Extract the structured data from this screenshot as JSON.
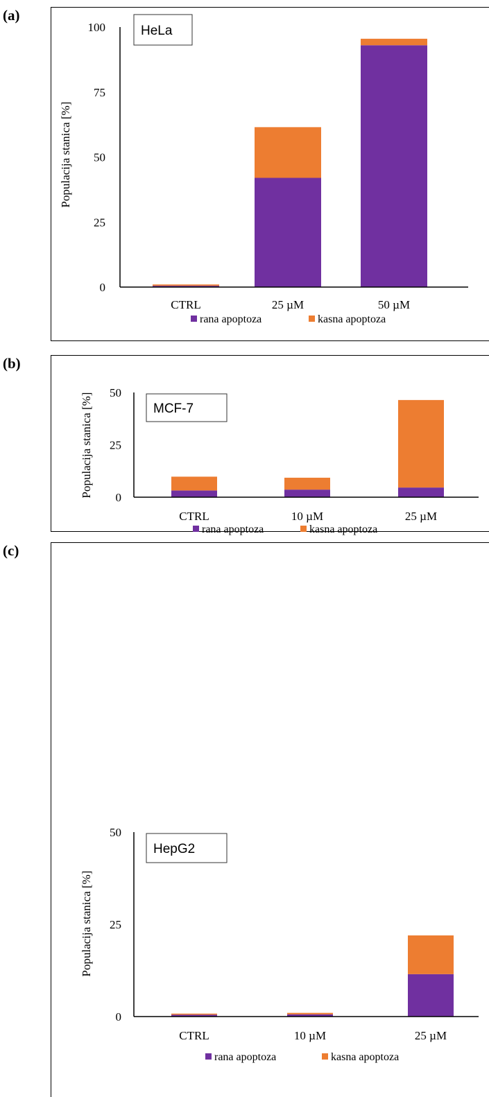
{
  "colors": {
    "early": "#7030A0",
    "late": "#ED7D31",
    "axis": "#000000"
  },
  "chart_data": [
    {
      "type": "bar",
      "stacked": true,
      "panel_label": "(a)",
      "cell_line": "HeLa",
      "ylabel": "Populacija stanica [%]",
      "ylim": [
        0,
        100
      ],
      "yticks": [
        "0",
        "25",
        "50",
        "75",
        "100"
      ],
      "categories": [
        "CTRL",
        "25 µM",
        "50 µM"
      ],
      "series": [
        {
          "name": "rana apoptoza",
          "values": [
            0.5,
            42,
            93
          ]
        },
        {
          "name": "kasna apoptoza",
          "values": [
            0.5,
            19.5,
            2.5
          ]
        }
      ],
      "legend": [
        "rana apoptoza",
        "kasna apoptoza"
      ],
      "legend_position": "bottom"
    },
    {
      "type": "bar",
      "stacked": true,
      "panel_label": "(b)",
      "cell_line": "MCF-7",
      "ylabel": "Populacija stanica [%]",
      "ylim": [
        0,
        50
      ],
      "yticks": [
        "0",
        "25",
        "50"
      ],
      "categories": [
        "CTRL",
        "10 µM",
        "25 µM"
      ],
      "series": [
        {
          "name": "rana apoptoza",
          "values": [
            3.2,
            3.6,
            4.6
          ]
        },
        {
          "name": "kasna apoptoza",
          "values": [
            6.6,
            5.7,
            41.8
          ]
        }
      ],
      "legend": [
        "rana apoptoza",
        "kasna apoptoza"
      ],
      "legend_position": "bottom"
    },
    {
      "type": "bar",
      "stacked": true,
      "panel_label": "(c)",
      "cell_line": "HepG2",
      "ylabel": "Populacija stanica [%]",
      "ylim": [
        0,
        50
      ],
      "yticks": [
        "0",
        "25",
        "50"
      ],
      "categories": [
        "CTRL",
        "10 µM",
        "25 µM"
      ],
      "series": [
        {
          "name": "rana apoptoza",
          "values": [
            0.5,
            0.6,
            11.5
          ]
        },
        {
          "name": "kasna apoptoza",
          "values": [
            0.3,
            0.4,
            10.5
          ]
        }
      ],
      "legend": [
        "rana apoptoza",
        "kasna apoptoza"
      ],
      "legend_position": "bottom"
    }
  ]
}
